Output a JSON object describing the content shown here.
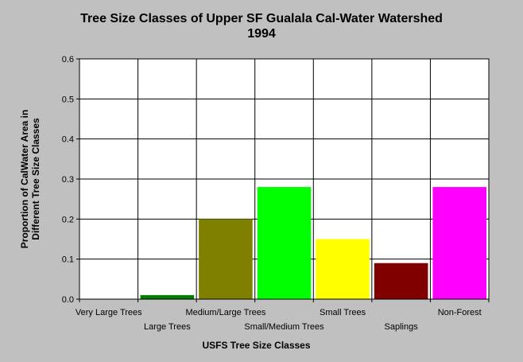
{
  "chart_data": {
    "type": "bar",
    "title": "Tree Size Classes of Upper SF Gualala Cal-Water Watershed",
    "subtitle": "1994",
    "xlabel": "USFS Tree Size Classes",
    "ylabel": [
      "Proportion of CalWater Area in",
      "Different Tree Size Classes"
    ],
    "categories": [
      "Very Large Trees",
      "Large Trees",
      "Medium/Large Trees",
      "Small/Medium Trees",
      "Small Trees",
      "Saplings",
      "Non-Forest"
    ],
    "values": [
      0.0,
      0.01,
      0.2,
      0.28,
      0.15,
      0.09,
      0.28
    ],
    "colors": [
      "#008000",
      "#008000",
      "#808000",
      "#00ff00",
      "#ffff00",
      "#800000",
      "#ff00ff"
    ],
    "ylim": [
      0,
      0.6
    ],
    "yticks": [
      "0.0",
      "0.1",
      "0.2",
      "0.3",
      "0.4",
      "0.5",
      "0.6"
    ],
    "grid": true,
    "legend": "none"
  }
}
